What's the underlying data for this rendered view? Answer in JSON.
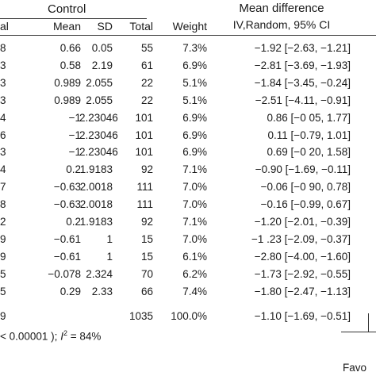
{
  "header": {
    "group": "Control",
    "md_title": "Mean difference",
    "md_subtitle": "IV,Random, 95% CI",
    "col_cut": "al",
    "col_mean": "Mean",
    "col_sd": "SD",
    "col_total": "Total",
    "col_weight": "Weight"
  },
  "rows": [
    {
      "cut": "8",
      "mean": "0.66",
      "sd": "0.05",
      "total": "55",
      "weight": "7.3%",
      "md": "−1.92 [−2.63, −1.21]"
    },
    {
      "cut": "3",
      "mean": "0.58",
      "sd": "2.19",
      "total": "61",
      "weight": "6.9%",
      "md": "−2.81 [−3.69, −1.93]"
    },
    {
      "cut": "3",
      "mean": "0.989",
      "sd": "2.055",
      "total": "22",
      "weight": "5.1%",
      "md": "−1.84 [−3.45, −0.24]"
    },
    {
      "cut": "3",
      "mean": "0.989",
      "sd": "2.055",
      "total": "22",
      "weight": "5.1%",
      "md": "−2.51 [−4.11, −0.91]"
    },
    {
      "cut": "4",
      "mean": "−1",
      "sd": "2.23046",
      "total": "101",
      "weight": "6.9%",
      "md": "0.86 [−0 05, 1.77]"
    },
    {
      "cut": "6",
      "mean": "−1",
      "sd": "2.23046",
      "total": "101",
      "weight": "6.9%",
      "md": "0.11 [−0.79, 1.01]"
    },
    {
      "cut": "3",
      "mean": "−1",
      "sd": "2.23046",
      "total": "101",
      "weight": "6.9%",
      "md": "0.69 [−0 20, 1.58]"
    },
    {
      "cut": "4",
      "mean": "0.2",
      "sd": "1.9183",
      "total": "92",
      "weight": "7.1%",
      "md": "−0.90 [−1.69, −0.11]"
    },
    {
      "cut": "7",
      "mean": "−0.63",
      "sd": "2.0018",
      "total": "111",
      "weight": "7.0%",
      "md": "−0.06 [−0 90, 0.78]"
    },
    {
      "cut": "8",
      "mean": "−0.63",
      "sd": "2.0018",
      "total": "111",
      "weight": "7.0%",
      "md": "−0.16 [−0.99, 0.67]"
    },
    {
      "cut": "2",
      "mean": "0.2",
      "sd": "1.9183",
      "total": "92",
      "weight": "7.1%",
      "md": "−1.20 [−2.01, −0.39]"
    },
    {
      "cut": "9",
      "mean": "−0.61",
      "sd": "1",
      "total": "15",
      "weight": "7.0%",
      "md": "−1 .23 [−2.09, −0.37]"
    },
    {
      "cut": "9",
      "mean": "−0.61",
      "sd": "1",
      "total": "15",
      "weight": "6.1%",
      "md": "−2.80 [−4.00, −1.60]"
    },
    {
      "cut": "5",
      "mean": "−0.078",
      "sd": "2.324",
      "total": "70",
      "weight": "6.2%",
      "md": "−1.73 [−2.92, −0.55]"
    },
    {
      "cut": "5",
      "mean": "0.29",
      "sd": "2.33",
      "total": "66",
      "weight": "7.4%",
      "md": "−1.80 [−2.47, −1.13]"
    }
  ],
  "total_row": {
    "cut": "9",
    "total": "1035",
    "weight": "100.0%",
    "md": "−1.10 [−1.69, −0.51]"
  },
  "heterogeneity": {
    "prefix": "< 0.00001 ); ",
    "i_symbol": "I",
    "sup": "2",
    "suffix": " = 84%"
  },
  "footer": {
    "favours_cut": "Favo"
  }
}
